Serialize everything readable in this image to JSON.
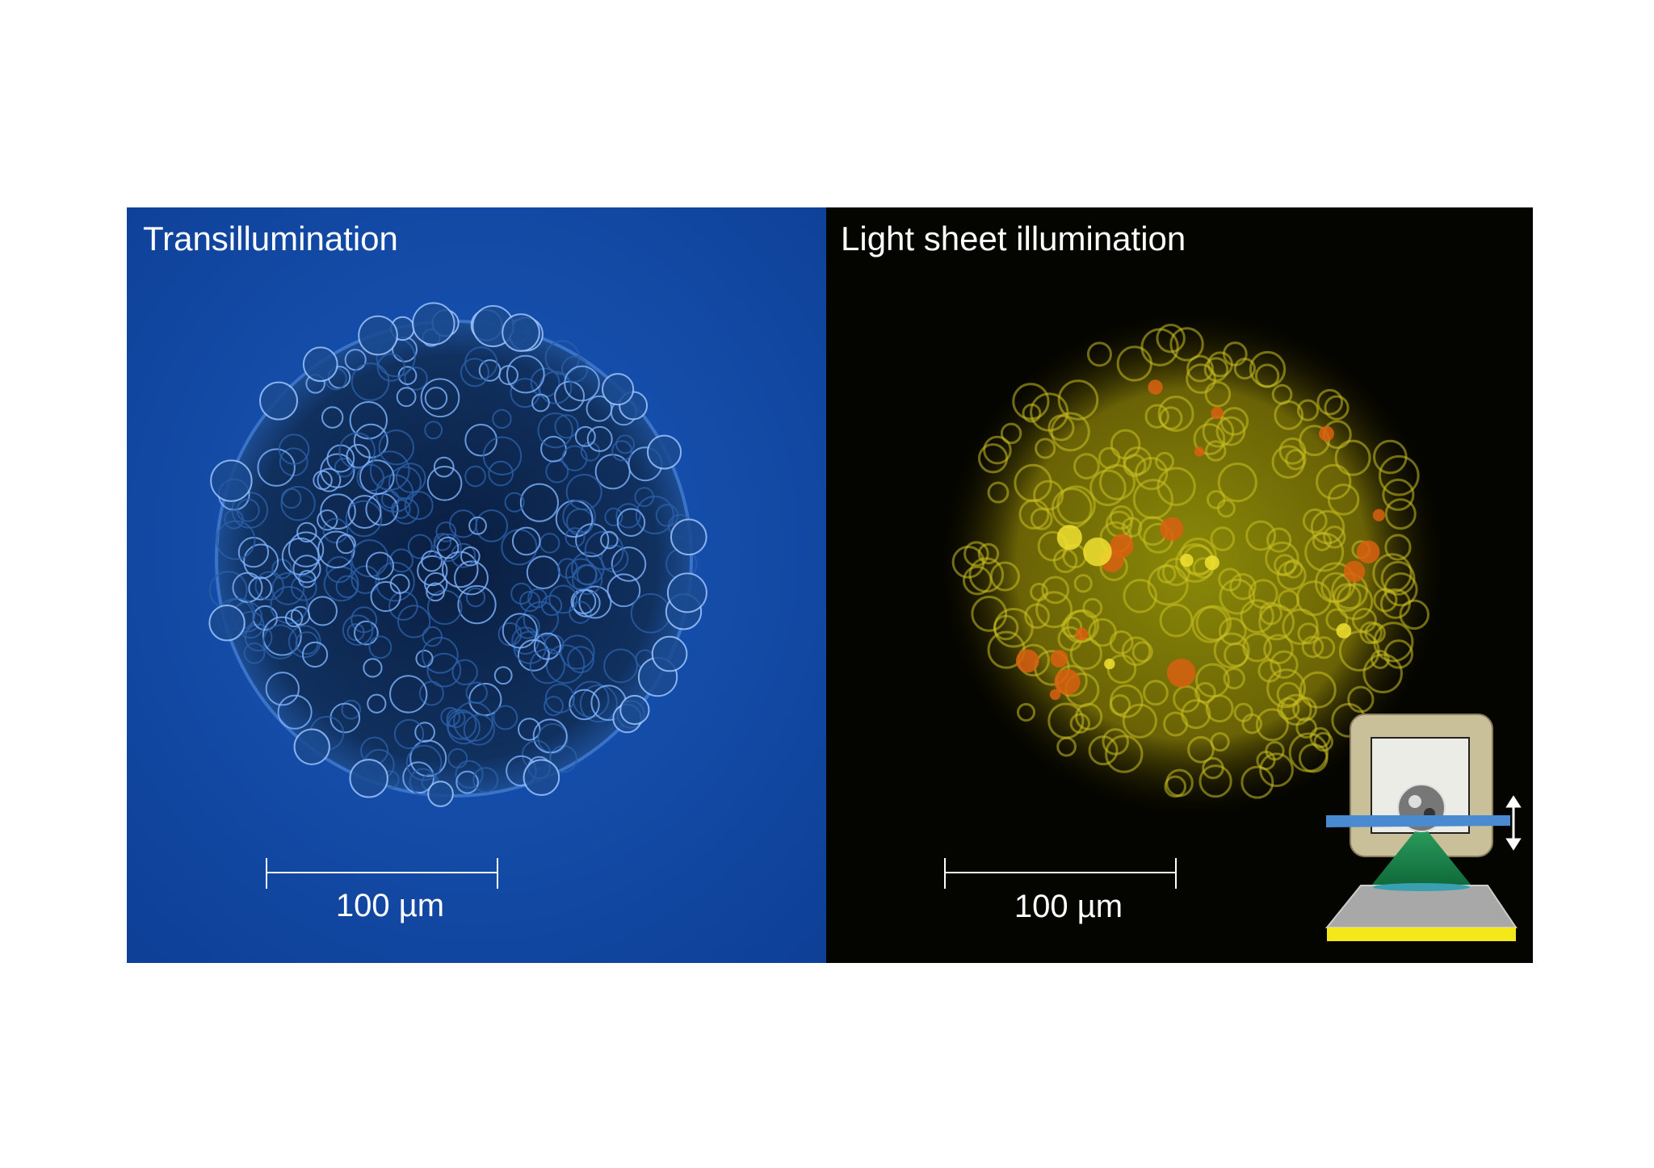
{
  "panels": [
    {
      "label": "Transillumination",
      "scale_bar": "100 µm"
    },
    {
      "label": "Light sheet illumination",
      "scale_bar": "100 µm"
    }
  ]
}
